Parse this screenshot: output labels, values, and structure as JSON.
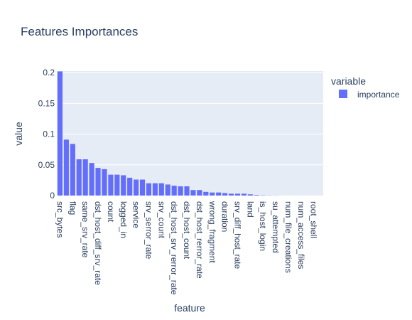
{
  "chart_data": {
    "type": "bar",
    "title": "Features Importances",
    "xlabel": "feature",
    "ylabel": "value",
    "legend_title": "variable",
    "legend_position": "top-right",
    "grid": true,
    "ylim": [
      0,
      0.2025
    ],
    "yticks": [
      0,
      0.05,
      0.1,
      0.15,
      0.2
    ],
    "ytick_labels": [
      "0",
      "0.05",
      "0.1",
      "0.15",
      "0.2"
    ],
    "x_tick_labels": [
      "src_bytes",
      "flag",
      "same_srv_rate",
      "dst_host_diff_srv_rate",
      "count",
      "logged_in",
      "service",
      "srv_serror_rate",
      "srv_count",
      "dst_host_srv_rerror_rate",
      "dst_host_count",
      "dst_host_rerror_rate",
      "wrong_fragment",
      "duration",
      "srv_diff_host_rate",
      "land",
      "is_host_login",
      "su_attempted",
      "num_file_creations",
      "num_access_files",
      "root_shell"
    ],
    "series": [
      {
        "name": "importance",
        "color": "#636efa",
        "values": [
          0.202,
          0.091,
          0.084,
          0.059,
          0.059,
          0.053,
          0.045,
          0.043,
          0.034,
          0.034,
          0.033,
          0.029,
          0.026,
          0.026,
          0.02,
          0.02,
          0.02,
          0.018,
          0.016,
          0.015,
          0.015,
          0.009,
          0.009,
          0.006,
          0.005,
          0.005,
          0.004,
          0.003,
          0.003,
          0.003,
          0.002,
          0.001,
          0.0005,
          0.0003,
          0.0002,
          0.0001,
          0.0001,
          0.0001,
          0.0001,
          0.0001,
          0.0001,
          0.0001
        ]
      }
    ]
  }
}
